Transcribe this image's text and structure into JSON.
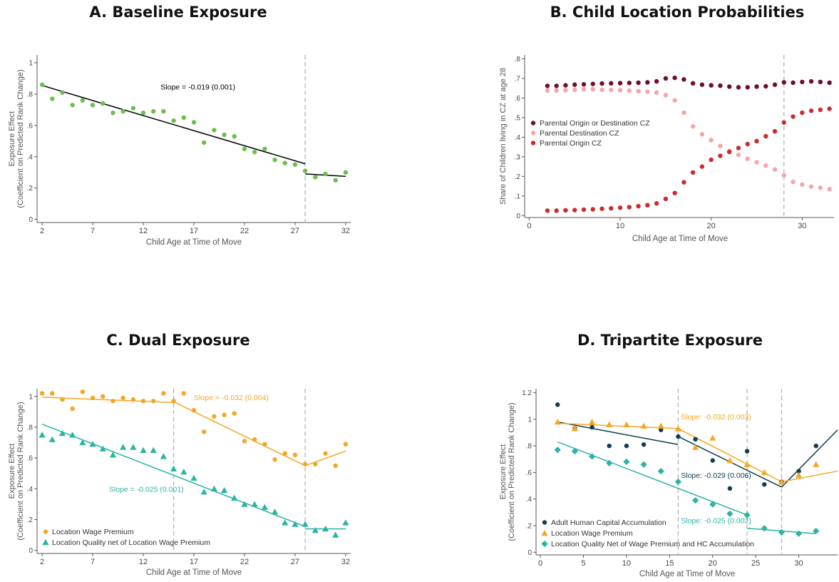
{
  "colors": {
    "green": "#6cbf4a",
    "black": "#000000",
    "maroon": "#6e0d2f",
    "pink": "#f4a6a8",
    "red": "#cc2a2e",
    "orange": "#f5a623",
    "teal": "#2bb3a3",
    "navy": "#0f3d4f",
    "dashed": "#b3b3b3",
    "axis": "#555555"
  },
  "chart_data": [
    {
      "panel": "A",
      "type": "scatter",
      "title": "A. Baseline Exposure",
      "xlabel": "Child Age at Time of Move",
      "ylabel_lines": [
        "Exposure Effect",
        "(Coefficient on Predicted Rank Change)"
      ],
      "xticks": [
        2,
        7,
        12,
        17,
        22,
        27,
        32
      ],
      "yticks": [
        0,
        0.2,
        0.4,
        0.6,
        0.8,
        1
      ],
      "ytick_labels": [
        "0",
        ".2",
        ".4",
        ".6",
        ".8",
        "1"
      ],
      "xlim": [
        1.5,
        32.5
      ],
      "ylim": [
        -0.02,
        1.05
      ],
      "vlines": [
        28
      ],
      "series": [
        {
          "color": "green",
          "marker": "circle",
          "x": [
            2,
            3,
            4,
            5,
            6,
            7,
            8,
            9,
            10,
            11,
            12,
            13,
            14,
            15,
            16,
            17,
            18,
            19,
            20,
            21,
            22,
            23,
            24,
            25,
            26,
            27,
            28,
            29,
            30,
            31,
            32
          ],
          "y": [
            0.86,
            0.77,
            0.81,
            0.73,
            0.76,
            0.73,
            0.74,
            0.68,
            0.69,
            0.71,
            0.68,
            0.69,
            0.69,
            0.63,
            0.65,
            0.62,
            0.49,
            0.57,
            0.54,
            0.53,
            0.45,
            0.43,
            0.45,
            0.38,
            0.36,
            0.35,
            0.31,
            0.27,
            0.29,
            0.25,
            0.3
          ]
        }
      ],
      "fit_lines": [
        {
          "color": "black",
          "x": [
            2,
            28
          ],
          "y": [
            0.855,
            0.355
          ]
        },
        {
          "color": "black",
          "x": [
            28,
            32
          ],
          "y": [
            0.29,
            0.275
          ]
        }
      ],
      "annotations": [
        {
          "text": "Slope = -0.019 (0.001)",
          "color": "black",
          "x": 17.4,
          "y": 0.83
        }
      ]
    },
    {
      "panel": "B",
      "type": "scatter",
      "title": "B. Child Location Probabilities",
      "xlabel": "Child Age at Time of Move",
      "ylabel_lines": [
        "Share of Children living in CZ at age 28"
      ],
      "xticks": [
        0,
        10,
        20,
        30
      ],
      "yticks": [
        0,
        0.1,
        0.2,
        0.3,
        0.4,
        0.5,
        0.6,
        0.7,
        0.8
      ],
      "ytick_labels": [
        "0",
        ".1",
        ".2",
        ".3",
        ".4",
        ".5",
        ".6",
        ".7",
        ".8"
      ],
      "xlim": [
        -0.5,
        33.5
      ],
      "ylim": [
        -0.01,
        0.82
      ],
      "vlines": [
        28
      ],
      "legend_position": "middle-left",
      "series": [
        {
          "name": "Parental Origin or Destination CZ",
          "color": "maroon",
          "marker": "circle",
          "x": [
            2,
            3,
            4,
            5,
            6,
            7,
            8,
            9,
            10,
            11,
            12,
            13,
            14,
            15,
            16,
            17,
            18,
            19,
            20,
            21,
            22,
            23,
            24,
            25,
            26,
            27,
            28,
            29,
            30,
            31,
            32,
            33
          ],
          "y": [
            0.662,
            0.662,
            0.665,
            0.668,
            0.67,
            0.672,
            0.674,
            0.675,
            0.676,
            0.677,
            0.678,
            0.68,
            0.685,
            0.7,
            0.703,
            0.695,
            0.675,
            0.668,
            0.665,
            0.663,
            0.658,
            0.655,
            0.655,
            0.658,
            0.66,
            0.668,
            0.68,
            0.678,
            0.682,
            0.685,
            0.682,
            0.678
          ]
        },
        {
          "name": "Parental Destination CZ",
          "color": "pink",
          "marker": "circle",
          "x": [
            2,
            3,
            4,
            5,
            6,
            7,
            8,
            9,
            10,
            11,
            12,
            13,
            14,
            15,
            16,
            17,
            18,
            19,
            20,
            21,
            22,
            23,
            24,
            25,
            26,
            27,
            28,
            29,
            30,
            31,
            32,
            33
          ],
          "y": [
            0.638,
            0.638,
            0.64,
            0.642,
            0.645,
            0.645,
            0.642,
            0.642,
            0.64,
            0.638,
            0.635,
            0.632,
            0.628,
            0.615,
            0.588,
            0.525,
            0.455,
            0.415,
            0.385,
            0.355,
            0.33,
            0.31,
            0.29,
            0.272,
            0.255,
            0.235,
            0.205,
            0.172,
            0.158,
            0.148,
            0.142,
            0.135
          ]
        },
        {
          "name": "Parental Origin CZ",
          "color": "red",
          "marker": "circle",
          "x": [
            2,
            3,
            4,
            5,
            6,
            7,
            8,
            9,
            10,
            11,
            12,
            13,
            14,
            15,
            16,
            17,
            18,
            19,
            20,
            21,
            22,
            23,
            24,
            25,
            26,
            27,
            28,
            29,
            30,
            31,
            32,
            33
          ],
          "y": [
            0.025,
            0.025,
            0.027,
            0.028,
            0.03,
            0.032,
            0.035,
            0.037,
            0.04,
            0.043,
            0.048,
            0.053,
            0.062,
            0.085,
            0.115,
            0.17,
            0.22,
            0.25,
            0.285,
            0.305,
            0.325,
            0.345,
            0.365,
            0.38,
            0.405,
            0.43,
            0.475,
            0.505,
            0.525,
            0.535,
            0.54,
            0.545
          ]
        }
      ]
    },
    {
      "panel": "C",
      "type": "scatter",
      "title": "C. Dual Exposure",
      "xlabel": "Child Age at Time of Move",
      "ylabel_lines": [
        "Exposure Effect",
        "(Coefficient on Predicted Rank Change)"
      ],
      "xticks": [
        2,
        7,
        12,
        17,
        22,
        27,
        32
      ],
      "yticks": [
        0,
        0.2,
        0.4,
        0.6,
        0.8,
        1
      ],
      "ytick_labels": [
        "0",
        ".2",
        ".4",
        ".6",
        ".8",
        "1"
      ],
      "xlim": [
        1.5,
        32.5
      ],
      "ylim": [
        -0.02,
        1.05
      ],
      "vlines": [
        15,
        28
      ],
      "legend_position": "bottom-left",
      "series": [
        {
          "name": "Location Wage Premium",
          "color": "orange",
          "marker": "circle",
          "x": [
            2,
            3,
            4,
            5,
            6,
            7,
            8,
            9,
            10,
            11,
            12,
            13,
            14,
            15,
            16,
            17,
            18,
            19,
            20,
            21,
            22,
            23,
            24,
            25,
            26,
            27,
            28,
            29,
            30,
            31,
            32
          ],
          "y": [
            1.02,
            1.02,
            0.98,
            0.92,
            1.03,
            0.99,
            1.0,
            0.97,
            0.99,
            0.98,
            0.97,
            0.97,
            1.02,
            0.97,
            1.02,
            0.91,
            0.77,
            0.87,
            0.88,
            0.89,
            0.71,
            0.72,
            0.69,
            0.59,
            0.63,
            0.62,
            0.56,
            0.56,
            0.63,
            0.55,
            0.69
          ]
        },
        {
          "name": "Location Quality net of Location Wage Premium",
          "color": "teal",
          "marker": "triangle",
          "x": [
            2,
            3,
            4,
            5,
            6,
            7,
            8,
            9,
            10,
            11,
            12,
            13,
            14,
            15,
            16,
            17,
            18,
            19,
            20,
            21,
            22,
            23,
            24,
            25,
            26,
            27,
            28,
            29,
            30,
            31,
            32
          ],
          "y": [
            0.75,
            0.72,
            0.76,
            0.75,
            0.7,
            0.69,
            0.66,
            0.62,
            0.67,
            0.67,
            0.65,
            0.65,
            0.61,
            0.53,
            0.51,
            0.47,
            0.38,
            0.4,
            0.39,
            0.34,
            0.3,
            0.3,
            0.28,
            0.25,
            0.18,
            0.17,
            0.17,
            0.13,
            0.14,
            0.1,
            0.18
          ]
        }
      ],
      "fit_lines": [
        {
          "color": "orange",
          "x": [
            2,
            15
          ],
          "y": [
            0.995,
            0.96
          ]
        },
        {
          "color": "orange",
          "x": [
            15,
            28
          ],
          "y": [
            0.965,
            0.55
          ]
        },
        {
          "color": "orange",
          "x": [
            28,
            32
          ],
          "y": [
            0.55,
            0.645
          ]
        },
        {
          "color": "teal",
          "x": [
            2,
            28
          ],
          "y": [
            0.82,
            0.155
          ]
        },
        {
          "color": "teal",
          "x": [
            28,
            32
          ],
          "y": [
            0.14,
            0.14
          ]
        }
      ],
      "annotations": [
        {
          "text": "Slope = -0.032 (0.004)",
          "color": "orange",
          "x": 20.7,
          "y": 0.975
        },
        {
          "text": "Slope = -0.025 (0.001)",
          "color": "teal",
          "x": 12.3,
          "y": 0.38
        }
      ]
    },
    {
      "panel": "D",
      "type": "scatter",
      "title": "D. Tripartite Exposure",
      "xlabel": "Child Age at Time of Move",
      "ylabel_lines": [
        "Exposure Effect",
        "(Coefficient on Predicted Rank Change)"
      ],
      "xticks": [
        0,
        5,
        10,
        15,
        20,
        25,
        30
      ],
      "yticks": [
        0,
        0.2,
        0.4,
        0.6,
        0.8,
        1,
        1.2
      ],
      "ytick_labels": [
        "0",
        ".2",
        ".4",
        ".6",
        ".8",
        "1",
        "1.2"
      ],
      "xlim": [
        -0.5,
        34.5
      ],
      "ylim": [
        -0.02,
        1.23
      ],
      "vlines": [
        16,
        24,
        28
      ],
      "legend_position": "bottom-left",
      "series": [
        {
          "name": "Adult Human Capital Accumulation",
          "color": "navy",
          "marker": "circle",
          "x": [
            2,
            4,
            6,
            8,
            10,
            12,
            14,
            16,
            18,
            20,
            22,
            24,
            26,
            28,
            30,
            32
          ],
          "y": [
            1.11,
            0.93,
            0.94,
            0.8,
            0.8,
            0.81,
            0.92,
            0.87,
            0.85,
            0.69,
            0.48,
            0.76,
            0.51,
            0.53,
            0.61,
            0.8
          ]
        },
        {
          "name": "Location Wage Premium",
          "color": "orange",
          "marker": "triangle",
          "x": [
            2,
            4,
            6,
            8,
            10,
            12,
            14,
            16,
            18,
            20,
            22,
            24,
            26,
            28,
            30,
            32
          ],
          "y": [
            0.98,
            0.93,
            0.98,
            0.96,
            0.96,
            0.95,
            0.95,
            0.93,
            0.79,
            0.86,
            0.69,
            0.66,
            0.6,
            0.53,
            0.58,
            0.66
          ]
        },
        {
          "name": "Location Quality Net of Wage Premium and HC Accumulation",
          "color": "teal",
          "marker": "diamond",
          "x": [
            2,
            4,
            6,
            8,
            10,
            12,
            14,
            16,
            18,
            20,
            22,
            24,
            26,
            28,
            30,
            32
          ],
          "y": [
            0.77,
            0.76,
            0.72,
            0.67,
            0.68,
            0.66,
            0.61,
            0.53,
            0.39,
            0.36,
            0.29,
            0.28,
            0.18,
            0.15,
            0.14,
            0.16
          ]
        }
      ],
      "fit_lines": [
        {
          "color": "navy",
          "x": [
            2,
            16
          ],
          "y": [
            0.98,
            0.81
          ]
        },
        {
          "color": "navy",
          "x": [
            16,
            28
          ],
          "y": [
            0.87,
            0.49
          ]
        },
        {
          "color": "navy",
          "x": [
            28,
            34.5
          ],
          "y": [
            0.49,
            0.92
          ]
        },
        {
          "color": "orange",
          "x": [
            2,
            16
          ],
          "y": [
            0.97,
            0.93
          ]
        },
        {
          "color": "orange",
          "x": [
            16,
            28
          ],
          "y": [
            0.93,
            0.53
          ]
        },
        {
          "color": "orange",
          "x": [
            28,
            34.5
          ],
          "y": [
            0.53,
            0.61
          ]
        },
        {
          "color": "teal",
          "x": [
            2,
            24
          ],
          "y": [
            0.83,
            0.28
          ]
        },
        {
          "color": "teal",
          "x": [
            24,
            32
          ],
          "y": [
            0.18,
            0.14
          ]
        }
      ],
      "annotations": [
        {
          "text": "Slope: -0.032 (0.003)",
          "color": "orange",
          "x": 20.4,
          "y": 1.0
        },
        {
          "text": "Slope: -0.029 (0.006)",
          "color": "navy",
          "x": 20.4,
          "y": 0.56
        },
        {
          "text": "Slope: -0.025 (0.002)",
          "color": "teal",
          "x": 20.4,
          "y": 0.22
        }
      ]
    }
  ]
}
